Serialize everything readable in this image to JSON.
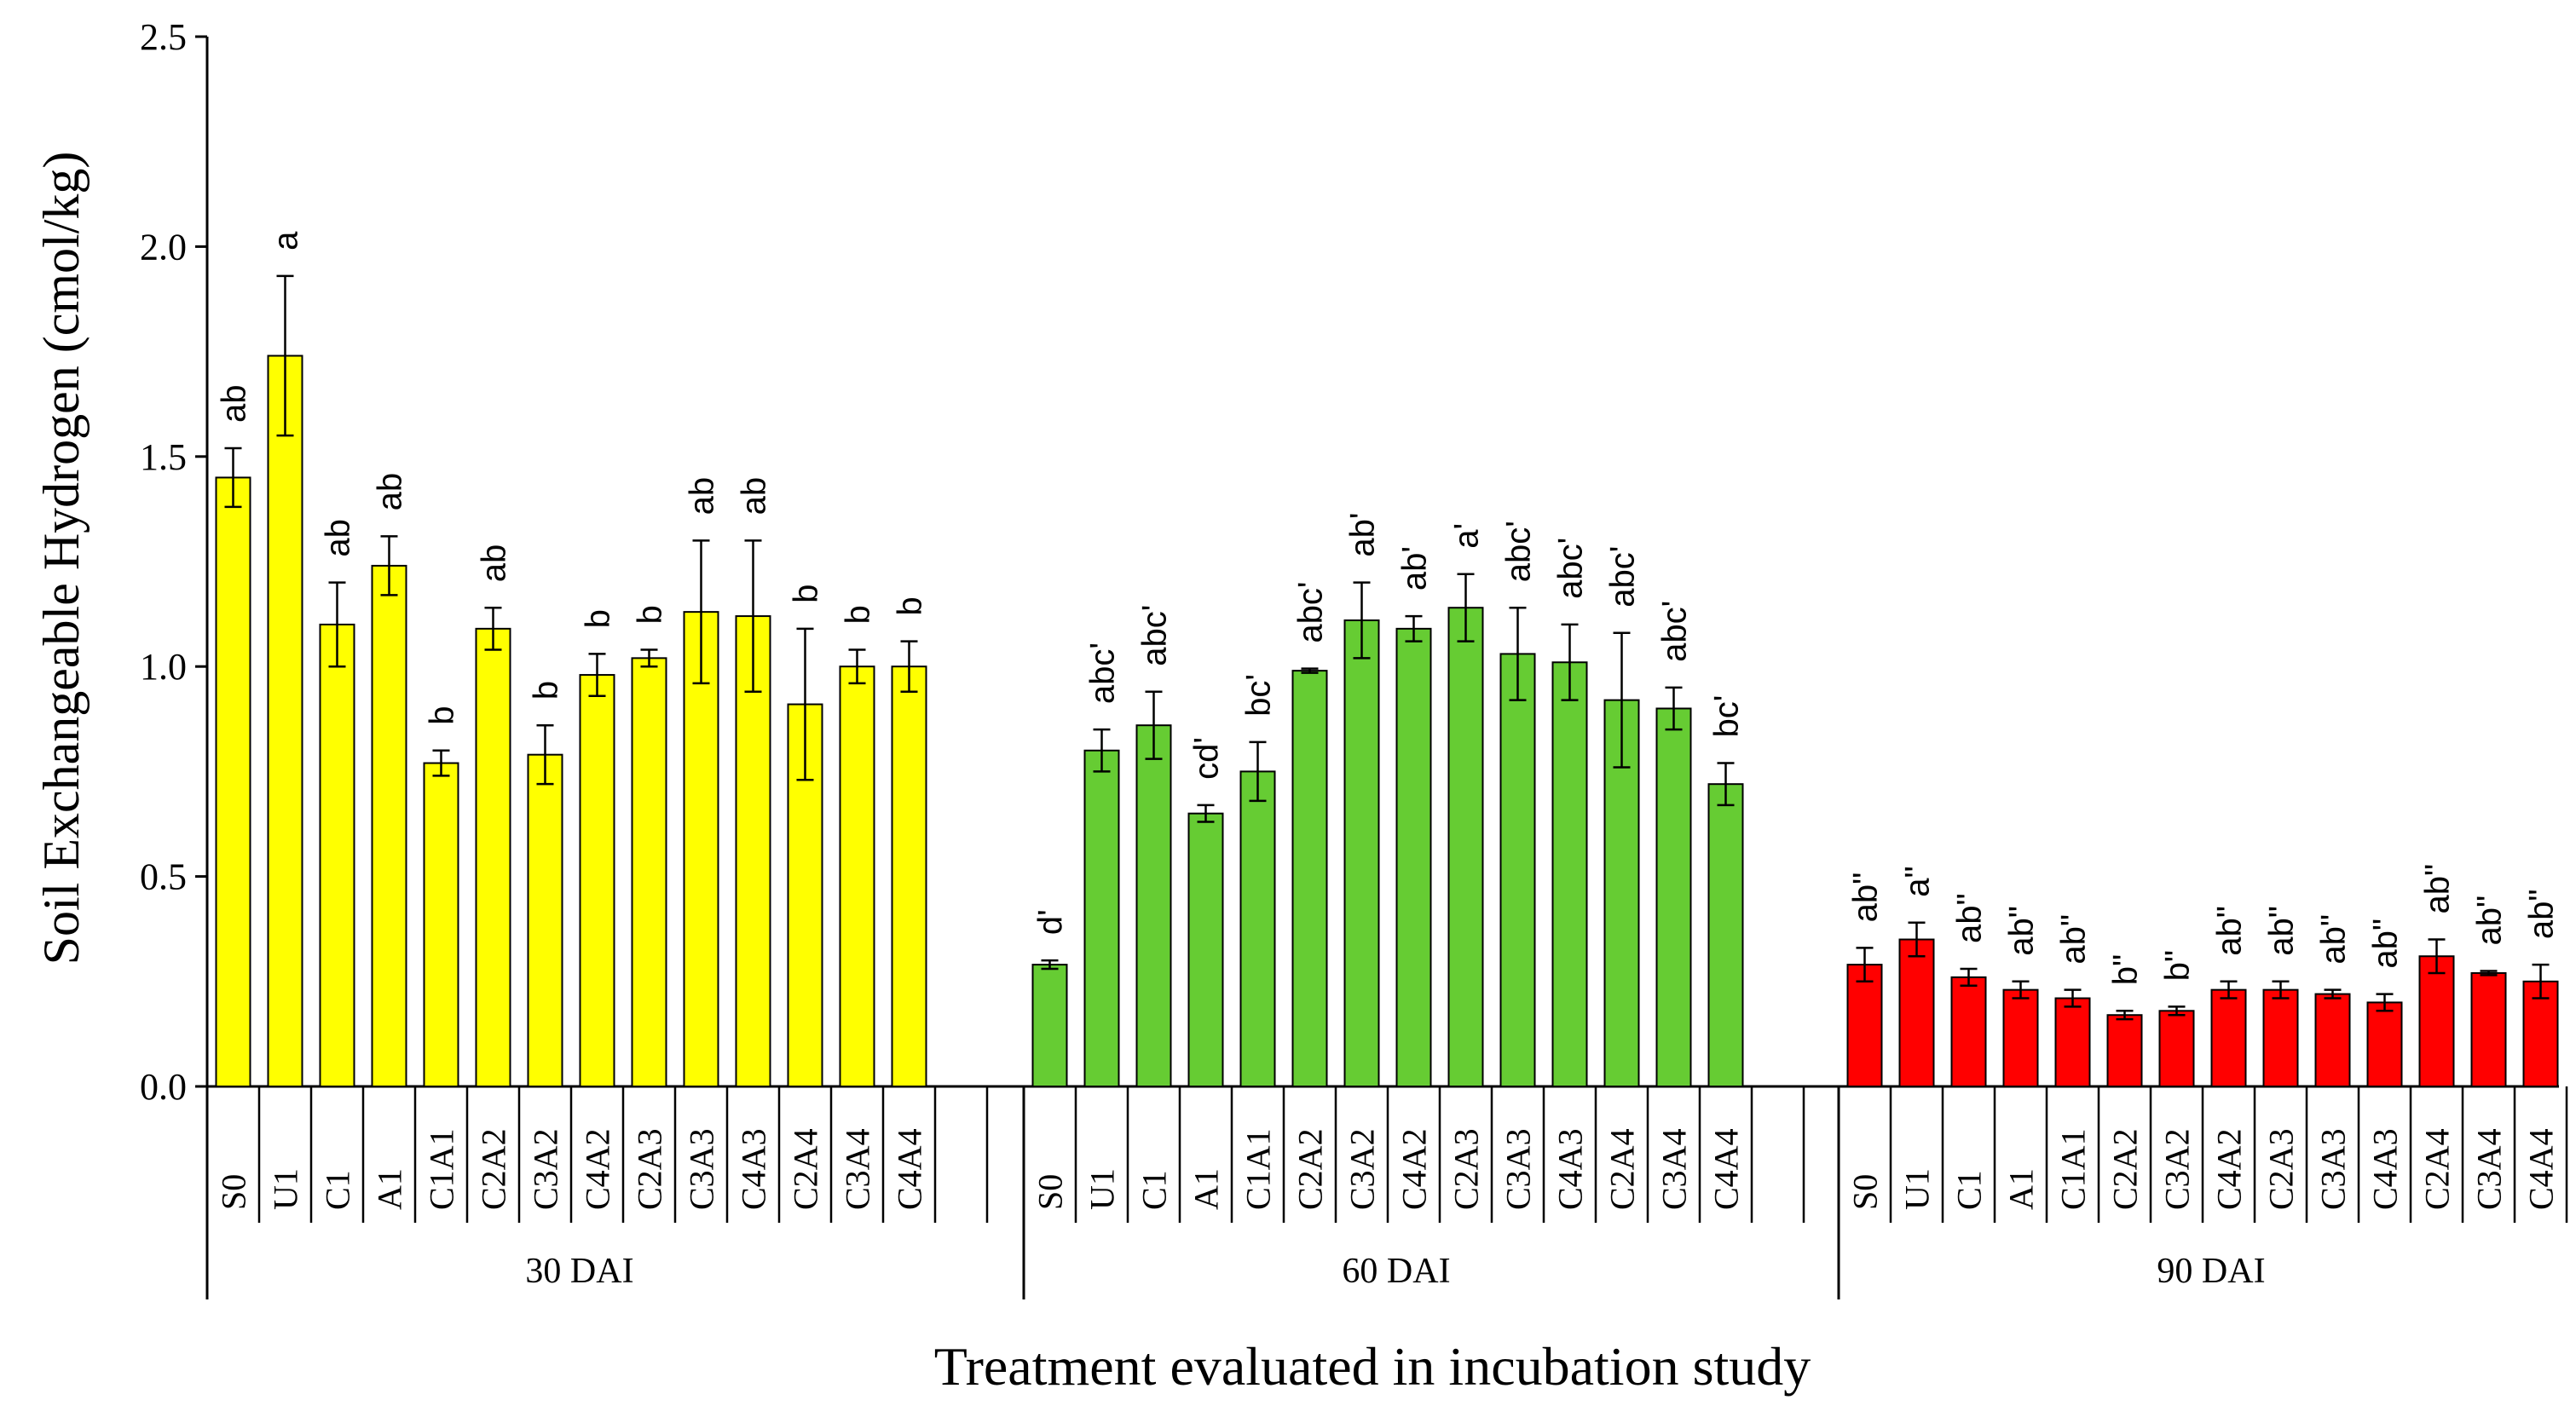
{
  "chart_data": {
    "type": "bar",
    "title": "",
    "xlabel": "Treatment evaluated in incubation study",
    "ylabel": "Soil Exchangeable Hydrogen (cmol/kg)",
    "ylim": [
      0,
      2.5
    ],
    "yticks": [
      "0.0",
      "0.5",
      "1.0",
      "1.5",
      "2.0",
      "2.5"
    ],
    "grid": false,
    "groups": [
      {
        "name": "30 DAI",
        "color": "#FFFF00",
        "categories": [
          "S0",
          "U1",
          "C1",
          "A1",
          "C1A1",
          "C2A2",
          "C3A2",
          "C4A2",
          "C2A3",
          "C3A3",
          "C4A3",
          "C2A4",
          "C3A4",
          "C4A4"
        ],
        "values": [
          1.45,
          1.74,
          1.1,
          1.24,
          0.77,
          1.09,
          0.79,
          0.98,
          1.02,
          1.13,
          1.12,
          0.91,
          1.0,
          1.0
        ],
        "errors": [
          0.07,
          0.19,
          0.1,
          0.07,
          0.03,
          0.05,
          0.07,
          0.05,
          0.02,
          0.17,
          0.18,
          0.18,
          0.04,
          0.06
        ],
        "letters": [
          "ab",
          "a",
          "ab",
          "ab",
          "b",
          "ab",
          "b",
          "b",
          "b",
          "ab",
          "ab",
          "b",
          "b",
          "b"
        ]
      },
      {
        "name": "60 DAI",
        "color": "#66CC33",
        "categories": [
          "S0",
          "U1",
          "C1",
          "A1",
          "C1A1",
          "C2A2",
          "C3A2",
          "C4A2",
          "C2A3",
          "C3A3",
          "C4A3",
          "C2A4",
          "C3A4",
          "C4A4"
        ],
        "values": [
          0.29,
          0.8,
          0.86,
          0.65,
          0.75,
          0.99,
          1.11,
          1.09,
          1.14,
          1.03,
          1.01,
          0.92,
          0.9,
          0.72
        ],
        "errors": [
          0.01,
          0.05,
          0.08,
          0.02,
          0.07,
          0.005,
          0.09,
          0.03,
          0.08,
          0.11,
          0.09,
          0.16,
          0.05,
          0.05
        ],
        "letters": [
          "d'",
          "abc'",
          "abc'",
          "cd'",
          "bc'",
          "abc'",
          "ab'",
          "ab'",
          "a'",
          "abc'",
          "abc'",
          "abc'",
          "abc'",
          "bc'"
        ]
      },
      {
        "name": "90 DAI",
        "color": "#FF0000",
        "categories": [
          "S0",
          "U1",
          "C1",
          "A1",
          "C1A1",
          "C2A2",
          "C3A2",
          "C4A2",
          "C2A3",
          "C3A3",
          "C4A3",
          "C2A4",
          "C3A4",
          "C4A4"
        ],
        "values": [
          0.29,
          0.35,
          0.26,
          0.23,
          0.21,
          0.17,
          0.18,
          0.23,
          0.23,
          0.22,
          0.2,
          0.31,
          0.27,
          0.25
        ],
        "errors": [
          0.04,
          0.04,
          0.02,
          0.02,
          0.02,
          0.01,
          0.01,
          0.02,
          0.02,
          0.01,
          0.02,
          0.04,
          0.005,
          0.04
        ],
        "letters": [
          "ab\"",
          "a\"",
          "ab\"",
          "ab\"",
          "ab\"",
          "b\"",
          "b\"",
          "ab\"",
          "ab\"",
          "ab\"",
          "ab\"",
          "ab\"",
          "ab\"",
          "ab\""
        ]
      }
    ]
  }
}
